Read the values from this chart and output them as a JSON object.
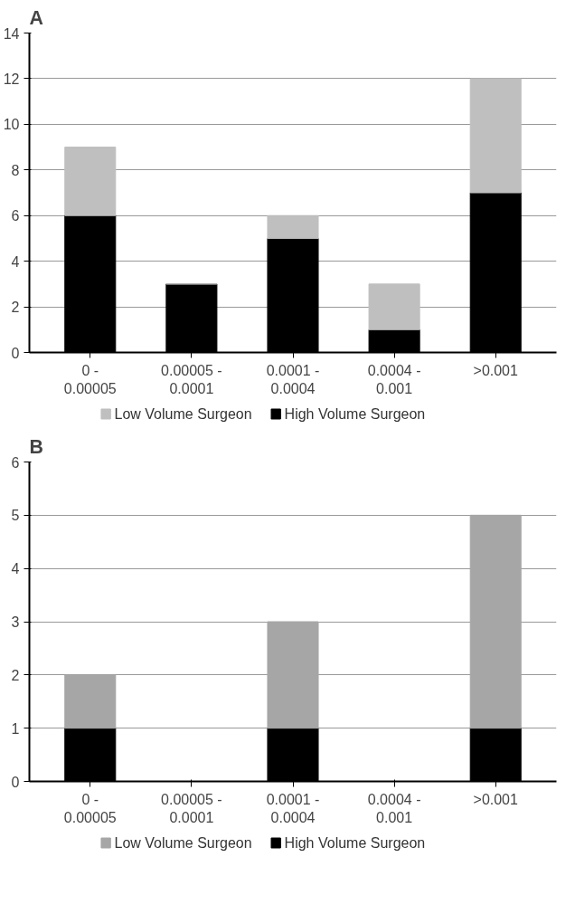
{
  "chart_data": [
    {
      "type": "bar",
      "title": "A",
      "stacked": true,
      "categories": [
        "0 - 0.00005",
        "0.00005 - 0.0001",
        "0.0001 - 0.0004",
        "0.0004 - 0.001",
        ">0.001"
      ],
      "series": [
        {
          "name": "High Volume Surgeon",
          "color": "#000000",
          "values": [
            6,
            3,
            5,
            1,
            7
          ]
        },
        {
          "name": "Low Volume Surgeon",
          "color": "#bfbfbf",
          "values": [
            3,
            0,
            1,
            2,
            5
          ]
        }
      ],
      "ylim": [
        0,
        14
      ],
      "yticks": [
        0,
        2,
        4,
        6,
        8,
        10,
        12,
        14
      ],
      "grid": "y",
      "legend": "bottom"
    },
    {
      "type": "bar",
      "title": "B",
      "stacked": true,
      "categories": [
        "0 - 0.00005",
        "0.00005 - 0.0001",
        "0.0001 - 0.0004",
        "0.0004 - 0.001",
        ">0.001"
      ],
      "series": [
        {
          "name": "High Volume Surgeon",
          "color": "#000000",
          "values": [
            1,
            0,
            1,
            0,
            1
          ]
        },
        {
          "name": "Low Volume Surgeon",
          "color": "#a6a6a6",
          "values": [
            1,
            0,
            2,
            0,
            4
          ]
        }
      ],
      "ylim": [
        0,
        6
      ],
      "yticks": [
        0,
        1,
        2,
        3,
        4,
        5,
        6
      ],
      "grid": "y",
      "legend": "bottom"
    }
  ]
}
